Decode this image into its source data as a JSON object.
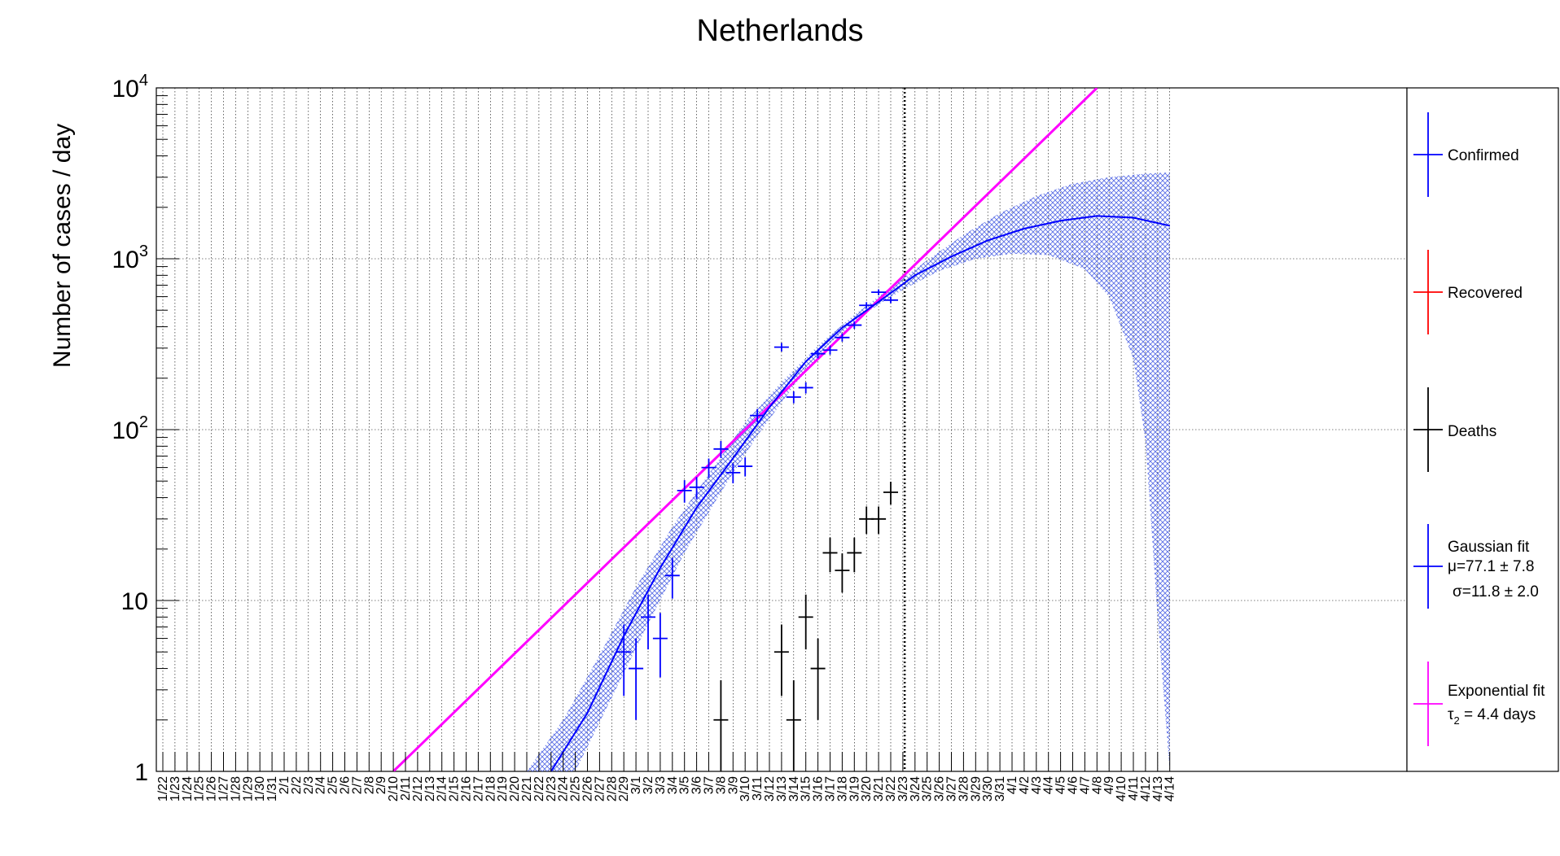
{
  "chart_data": {
    "type": "scatter",
    "title": "Netherlands",
    "ylabel": "Number of cases / day",
    "xlabel": "",
    "yscale": "log",
    "ylim": [
      1,
      10000
    ],
    "grid": true,
    "legend_position": "right",
    "y_tick_labels": [
      {
        "value": 1,
        "base": "1",
        "exp": ""
      },
      {
        "value": 10,
        "base": "10",
        "exp": ""
      },
      {
        "value": 100,
        "base": "10",
        "exp": "2"
      },
      {
        "value": 1000,
        "base": "10",
        "exp": "3"
      },
      {
        "value": 10000,
        "base": "10",
        "exp": "4"
      }
    ],
    "x_dates": [
      "1/22",
      "1/23",
      "1/24",
      "1/25",
      "1/26",
      "1/27",
      "1/28",
      "1/29",
      "1/30",
      "1/31",
      "2/1",
      "2/2",
      "2/3",
      "2/4",
      "2/5",
      "2/6",
      "2/7",
      "2/8",
      "2/9",
      "2/10",
      "2/11",
      "2/12",
      "2/13",
      "2/14",
      "2/15",
      "2/16",
      "2/17",
      "2/18",
      "2/19",
      "2/20",
      "2/21",
      "2/22",
      "2/23",
      "2/24",
      "2/25",
      "2/26",
      "2/27",
      "2/28",
      "2/29",
      "3/1",
      "3/2",
      "3/3",
      "3/4",
      "3/5",
      "3/6",
      "3/7",
      "3/8",
      "3/9",
      "3/10",
      "3/11",
      "3/12",
      "3/13",
      "3/14",
      "3/15",
      "3/16",
      "3/17",
      "3/18",
      "3/19",
      "3/20",
      "3/21",
      "3/22",
      "3/23",
      "3/24",
      "3/25",
      "3/26",
      "3/27",
      "3/28",
      "3/29",
      "3/30",
      "3/31",
      "4/1",
      "4/2",
      "4/3",
      "4/4",
      "4/5",
      "4/6",
      "4/7",
      "4/8",
      "4/9",
      "4/10",
      "4/11",
      "4/12",
      "4/13",
      "4/14"
    ],
    "vertical_marker_date": "3/23",
    "colors": {
      "confirmed": "#0000ff",
      "recovered": "#ff0000",
      "deaths": "#000000",
      "gaussian_fit": "#0000ff",
      "exponential_fit": "#ff00ff",
      "band": "#5b6fe6",
      "grid": "#000000"
    },
    "series": [
      {
        "name": "Confirmed",
        "points": [
          {
            "x": "2/29",
            "y": 5
          },
          {
            "x": "3/1",
            "y": 4
          },
          {
            "x": "3/2",
            "y": 8
          },
          {
            "x": "3/3",
            "y": 6
          },
          {
            "x": "3/4",
            "y": 14
          },
          {
            "x": "3/5",
            "y": 44
          },
          {
            "x": "3/6",
            "y": 46
          },
          {
            "x": "3/7",
            "y": 60
          },
          {
            "x": "3/8",
            "y": 77
          },
          {
            "x": "3/9",
            "y": 56
          },
          {
            "x": "3/10",
            "y": 61
          },
          {
            "x": "3/11",
            "y": 121
          },
          {
            "x": "3/13",
            "y": 304
          },
          {
            "x": "3/14",
            "y": 155
          },
          {
            "x": "3/15",
            "y": 176
          },
          {
            "x": "3/16",
            "y": 278
          },
          {
            "x": "3/17",
            "y": 292
          },
          {
            "x": "3/18",
            "y": 346
          },
          {
            "x": "3/19",
            "y": 409
          },
          {
            "x": "3/20",
            "y": 534
          },
          {
            "x": "3/21",
            "y": 637
          },
          {
            "x": "3/22",
            "y": 573
          }
        ]
      },
      {
        "name": "Recovered",
        "points": []
      },
      {
        "name": "Deaths",
        "points": [
          {
            "x": "3/8",
            "y": 2
          },
          {
            "x": "3/13",
            "y": 5
          },
          {
            "x": "3/14",
            "y": 2
          },
          {
            "x": "3/15",
            "y": 8
          },
          {
            "x": "3/16",
            "y": 4
          },
          {
            "x": "3/17",
            "y": 19
          },
          {
            "x": "3/18",
            "y": 15
          },
          {
            "x": "3/19",
            "y": 19
          },
          {
            "x": "3/20",
            "y": 30
          },
          {
            "x": "3/21",
            "y": 30
          },
          {
            "x": "3/22",
            "y": 43
          }
        ]
      }
    ],
    "fits": {
      "gaussian": {
        "label": "Gaussian fit",
        "mu_text": "μ=77.1 ± 7.8",
        "sigma_text": "σ=11.8  ± 2.0",
        "curve": [
          {
            "x": "2/23",
            "y": 1.0
          },
          {
            "x": "2/26",
            "y": 2.2
          },
          {
            "x": "2/29",
            "y": 6.2
          },
          {
            "x": "3/3",
            "y": 15.5
          },
          {
            "x": "3/6",
            "y": 35
          },
          {
            "x": "3/9",
            "y": 68
          },
          {
            "x": "3/12",
            "y": 135
          },
          {
            "x": "3/15",
            "y": 250
          },
          {
            "x": "3/18",
            "y": 395
          },
          {
            "x": "3/21",
            "y": 560
          },
          {
            "x": "3/24",
            "y": 800
          },
          {
            "x": "3/27",
            "y": 1030
          },
          {
            "x": "3/30",
            "y": 1280
          },
          {
            "x": "4/2",
            "y": 1500
          },
          {
            "x": "4/5",
            "y": 1670
          },
          {
            "x": "4/8",
            "y": 1780
          },
          {
            "x": "4/11",
            "y": 1740
          },
          {
            "x": "4/14",
            "y": 1560
          }
        ],
        "band_upper": [
          {
            "x": "2/21",
            "y": 1.0
          },
          {
            "x": "2/24",
            "y": 2.0
          },
          {
            "x": "2/27",
            "y": 4.8
          },
          {
            "x": "3/1",
            "y": 12
          },
          {
            "x": "3/4",
            "y": 27
          },
          {
            "x": "3/7",
            "y": 55
          },
          {
            "x": "3/10",
            "y": 110
          },
          {
            "x": "3/13",
            "y": 190
          },
          {
            "x": "3/16",
            "y": 310
          },
          {
            "x": "3/19",
            "y": 470
          },
          {
            "x": "3/22",
            "y": 680
          },
          {
            "x": "3/25",
            "y": 980
          },
          {
            "x": "3/28",
            "y": 1380
          },
          {
            "x": "3/31",
            "y": 1850
          },
          {
            "x": "4/3",
            "y": 2330
          },
          {
            "x": "4/6",
            "y": 2750
          },
          {
            "x": "4/9",
            "y": 3000
          },
          {
            "x": "4/12",
            "y": 3150
          },
          {
            "x": "4/14",
            "y": 3200
          }
        ],
        "band_lower": [
          {
            "x": "2/25",
            "y": 1.0
          },
          {
            "x": "2/28",
            "y": 2.7
          },
          {
            "x": "3/2",
            "y": 7.3
          },
          {
            "x": "3/5",
            "y": 19
          },
          {
            "x": "3/8",
            "y": 43
          },
          {
            "x": "3/11",
            "y": 92
          },
          {
            "x": "3/14",
            "y": 180
          },
          {
            "x": "3/17",
            "y": 320
          },
          {
            "x": "3/20",
            "y": 485
          },
          {
            "x": "3/23",
            "y": 660
          },
          {
            "x": "3/26",
            "y": 850
          },
          {
            "x": "3/29",
            "y": 1000
          },
          {
            "x": "4/1",
            "y": 1070
          },
          {
            "x": "4/4",
            "y": 1050
          },
          {
            "x": "4/7",
            "y": 870
          },
          {
            "x": "4/9",
            "y": 600
          },
          {
            "x": "4/11",
            "y": 260
          },
          {
            "x": "4/12",
            "y": 85
          },
          {
            "x": "4/13",
            "y": 8
          },
          {
            "x": "4/14",
            "y": 1.0
          }
        ]
      },
      "exponential": {
        "label": "Exponential fit",
        "tau_text": "τ",
        "tau_sub": "2",
        "tau_rest": " = 4.4 days",
        "curve": [
          {
            "x": "2/10",
            "y": 1.0
          },
          {
            "x": "4/8",
            "y": 10000
          }
        ]
      }
    }
  }
}
